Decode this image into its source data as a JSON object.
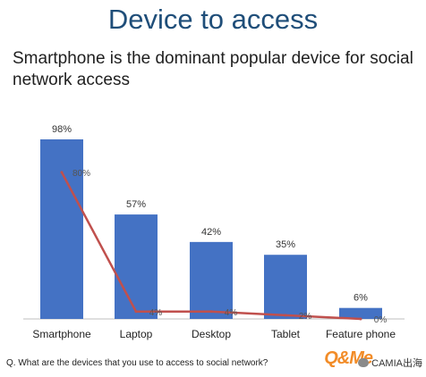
{
  "page": {
    "title": "Device to access",
    "subtitle": "Smartphone is the dominant popular device for social network access",
    "question": "Q. What are the devices that you use to access to social network?",
    "logo_text": "Q&Me",
    "watermark": "CAMIA出海"
  },
  "chart_data": {
    "type": "bar",
    "categories": [
      "Smartphone",
      "Laptop",
      "Desktop",
      "Tablet",
      "Feature phone"
    ],
    "series": [
      {
        "type": "bar",
        "values": [
          98,
          57,
          42,
          35,
          6
        ],
        "labels": [
          "98%",
          "57%",
          "42%",
          "35%",
          "6%"
        ],
        "color": "#4472c4"
      },
      {
        "type": "line",
        "values": [
          80,
          4,
          4,
          2,
          0
        ],
        "labels": [
          "80%",
          "4%",
          "4%",
          "2%",
          "0%"
        ],
        "color": "#c0504d"
      }
    ],
    "ylim": [
      0,
      100
    ],
    "grid": false,
    "legend": "none"
  }
}
